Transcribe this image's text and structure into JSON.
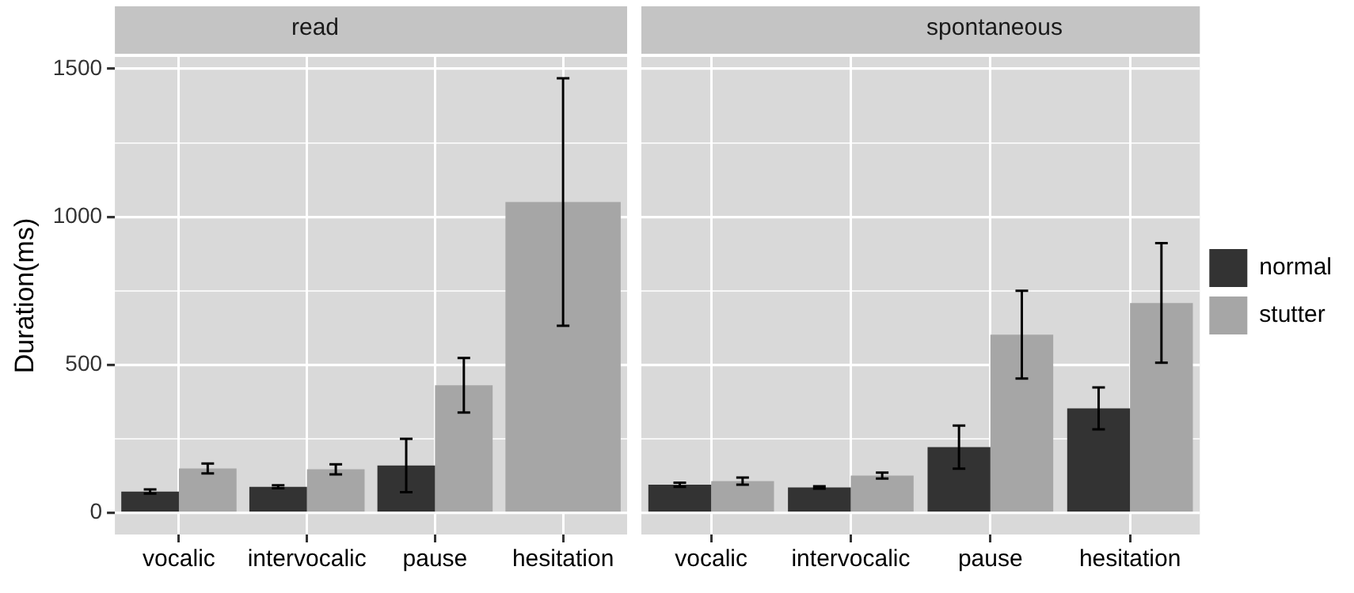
{
  "chart_data": [
    {
      "type": "bar",
      "title": "read",
      "ylabel": "Duration(ms)",
      "categories": [
        "vocalic",
        "intervocalic",
        "pause",
        "hesitation"
      ],
      "series": [
        {
          "color": "#333333",
          "values": [
            72,
            88,
            160,
            null
          ],
          "errors": [
            7,
            5,
            90,
            null
          ]
        },
        {
          "color": "#a6a6a6",
          "values": [
            150,
            147,
            431,
            1050
          ],
          "errors": [
            17,
            17,
            92,
            418
          ]
        }
      ],
      "ylim": [
        -73,
        1540
      ],
      "yticks": [
        0,
        {
          "value": 250,
          "label": null
        },
        500,
        {
          "value": 750,
          "label": null
        },
        1000,
        {
          "value": 1250,
          "label": null
        },
        1500
      ],
      "grid": true,
      "legend": false
    },
    {
      "type": "bar",
      "title": "spontaneous",
      "categories": [
        "vocalic",
        "intervocalic",
        "pause",
        "hesitation"
      ],
      "series": [
        {
          "name": "normal",
          "color": "#333333",
          "values": [
            95,
            86,
            222,
            353
          ],
          "errors": [
            7,
            4,
            73,
            71
          ]
        },
        {
          "name": "stutter",
          "color": "#a6a6a6",
          "values": [
            107,
            126,
            602,
            709
          ],
          "errors": [
            12,
            10,
            148,
            202
          ]
        }
      ],
      "ylim": [
        -73,
        1540
      ],
      "yticks": [
        0,
        {
          "value": 250,
          "label": null
        },
        500,
        {
          "value": 750,
          "label": null
        },
        1000,
        {
          "value": 1250,
          "label": null
        },
        1500
      ],
      "grid": true,
      "legend": "right",
      "tick_labels": "x"
    }
  ]
}
